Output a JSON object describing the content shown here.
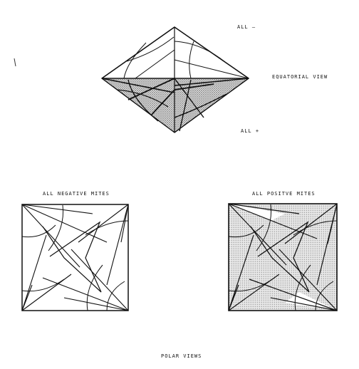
{
  "labels": {
    "all_minus": "ALL –",
    "all_plus": "ALL +",
    "equatorial_view": "EQUATORIAL VIEW",
    "all_negative_mites": "ALL NEGATIVE MITES",
    "all_positive_mites": "ALL POSITVE MITES",
    "polar_views": "POLAR VIEWS"
  },
  "colors": {
    "ink": "#111111",
    "stipple": "#8a8a8a",
    "paper": "#ffffff"
  }
}
